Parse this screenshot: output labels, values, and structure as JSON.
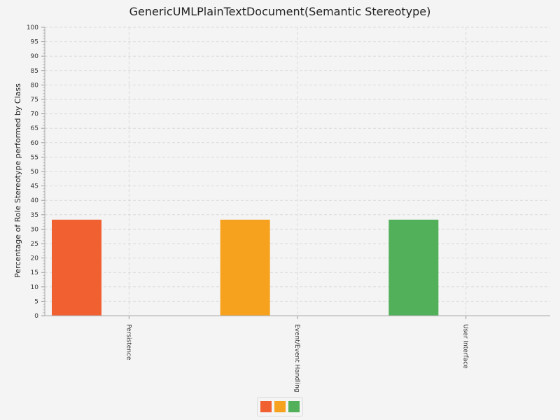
{
  "chart_data": {
    "type": "bar",
    "title": "GenericUMLPlainTextDocument(Semantic Stereotype)",
    "ylabel": "Percentage of Role Stereotype performed by Class",
    "xlabel": "",
    "categories": [
      "Persistence",
      "Event/Event Handling",
      "User Interface"
    ],
    "series": [
      {
        "values": [
          33.3,
          0,
          0
        ],
        "color": "#f06030"
      },
      {
        "values": [
          0,
          33.3,
          0
        ],
        "color": "#f6a21e"
      },
      {
        "values": [
          0,
          0,
          33.3
        ],
        "color": "#52b05a"
      }
    ],
    "ylim": [
      0,
      100
    ],
    "ytick_step": 5,
    "grid": true,
    "legend": {
      "position": "bottom-center",
      "colors": [
        "#f06030",
        "#f6a21e",
        "#52b05a"
      ]
    }
  }
}
